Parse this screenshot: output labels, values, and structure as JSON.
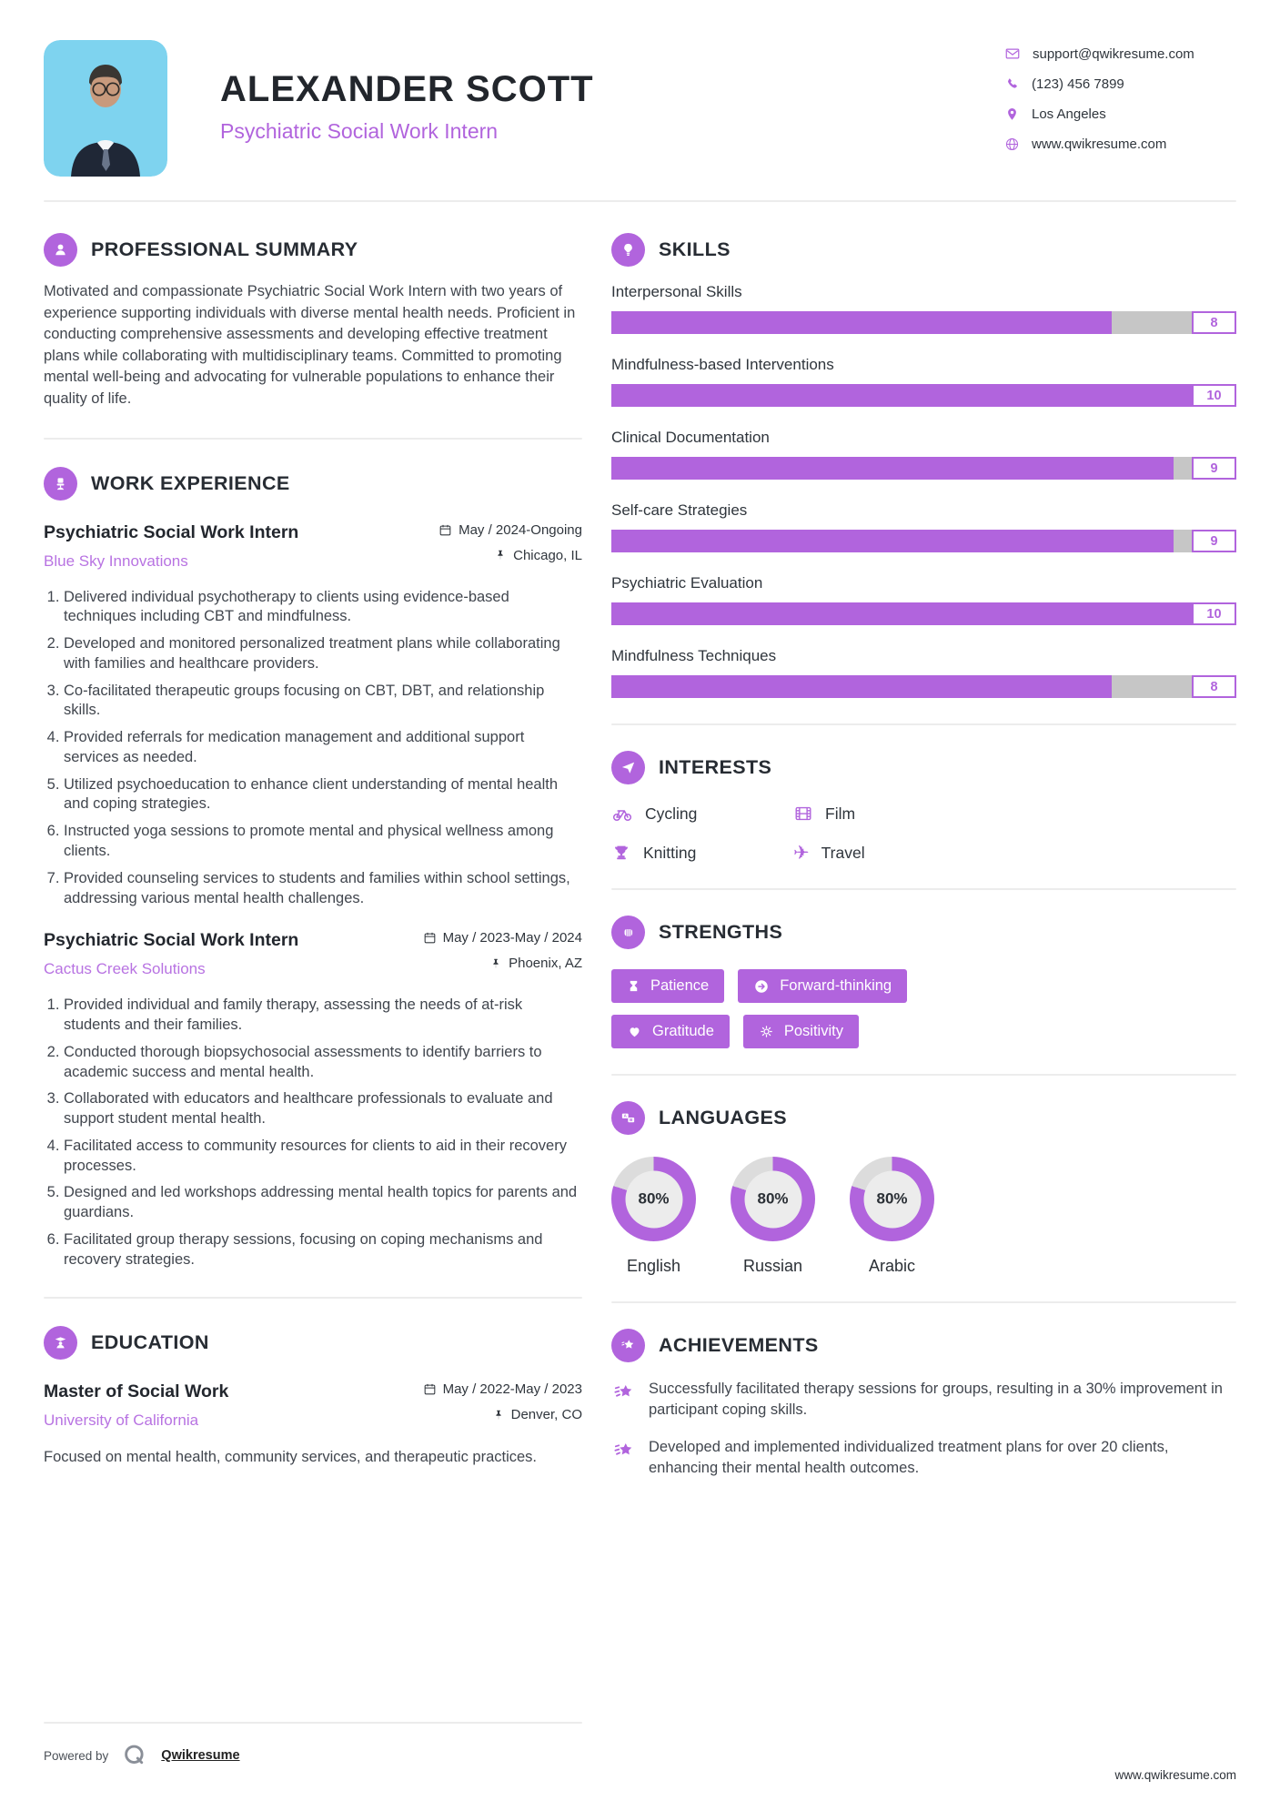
{
  "colors": {
    "accent": "#b164dd",
    "bar_track": "#c6c6c6",
    "donut_track": "#dcdcdc",
    "photo_bg": "#7ed3ef"
  },
  "header": {
    "name": "ALEXANDER SCOTT",
    "title": "Psychiatric Social Work Intern",
    "contact": {
      "email": {
        "icon": "envelope-icon",
        "text": "support@qwikresume.com"
      },
      "phone": {
        "icon": "phone-icon",
        "text": "(123) 456 7899"
      },
      "location": {
        "icon": "location-pin-icon",
        "text": "Los Angeles"
      },
      "website": {
        "icon": "globe-icon",
        "text": "www.qwikresume.com"
      }
    }
  },
  "summary": {
    "heading": "PROFESSIONAL SUMMARY",
    "text": "Motivated and compassionate Psychiatric Social Work Intern with two years of experience supporting individuals with diverse mental health needs. Proficient in conducting comprehensive assessments and developing effective treatment plans while collaborating with multidisciplinary teams. Committed to promoting mental well-being and advocating for vulnerable populations to enhance their quality of life."
  },
  "experience": {
    "heading": "WORK EXPERIENCE",
    "jobs": [
      {
        "title": "Psychiatric Social Work Intern",
        "company": "Blue Sky Innovations",
        "dates": "May / 2024-Ongoing",
        "location": "Chicago, IL",
        "bullets": [
          "Delivered individual psychotherapy to clients using evidence-based techniques including CBT and mindfulness.",
          "Developed and monitored personalized treatment plans while collaborating with families and healthcare providers.",
          "Co-facilitated therapeutic groups focusing on CBT, DBT, and relationship skills.",
          "Provided referrals for medication management and additional support services as needed.",
          "Utilized psychoeducation to enhance client understanding of mental health and coping strategies.",
          "Instructed yoga sessions to promote mental and physical wellness among clients.",
          "Provided counseling services to students and families within school settings, addressing various mental health challenges."
        ]
      },
      {
        "title": "Psychiatric Social Work Intern",
        "company": "Cactus Creek Solutions",
        "dates": "May / 2023-May / 2024",
        "location": "Phoenix, AZ",
        "bullets": [
          "Provided individual and family therapy, assessing the needs of at-risk students and their families.",
          "Conducted thorough biopsychosocial assessments to identify barriers to academic success and mental health.",
          "Collaborated with educators and healthcare professionals to evaluate and support student mental health.",
          "Facilitated access to community resources for clients to aid in their recovery processes.",
          "Designed and led workshops addressing mental health topics for parents and guardians.",
          "Facilitated group therapy sessions, focusing on coping mechanisms and recovery strategies."
        ]
      }
    ]
  },
  "education": {
    "heading": "EDUCATION",
    "degree": "Master of Social Work",
    "school": "University of California",
    "dates": "May / 2022-May / 2023",
    "location": "Denver, CO",
    "description": "Focused on mental health, community services, and therapeutic practices."
  },
  "skills": {
    "heading": "SKILLS",
    "items": [
      {
        "name": "Interpersonal Skills",
        "score": "8",
        "percent": 80
      },
      {
        "name": "Mindfulness-based Interventions",
        "score": "10",
        "percent": 100
      },
      {
        "name": "Clinical Documentation",
        "score": "9",
        "percent": 90
      },
      {
        "name": "Self-care Strategies",
        "score": "9",
        "percent": 90
      },
      {
        "name": "Psychiatric Evaluation",
        "score": "10",
        "percent": 100
      },
      {
        "name": "Mindfulness Techniques",
        "score": "8",
        "percent": 80
      }
    ]
  },
  "interests": {
    "heading": "INTERESTS",
    "items": [
      {
        "icon": "bicycle-icon",
        "label": "Cycling"
      },
      {
        "icon": "film-icon",
        "label": "Film"
      },
      {
        "icon": "trophy-icon",
        "label": "Knitting"
      },
      {
        "icon": "airplane-icon",
        "label": "Travel"
      }
    ]
  },
  "strengths": {
    "heading": "STRENGTHS",
    "items": [
      {
        "icon": "hourglass-icon",
        "label": "Patience"
      },
      {
        "icon": "arrow-right-icon",
        "label": "Forward-thinking"
      },
      {
        "icon": "heart-icon",
        "label": "Gratitude"
      },
      {
        "icon": "sun-icon",
        "label": "Positivity"
      }
    ]
  },
  "languages": {
    "heading": "LANGUAGES",
    "items": [
      {
        "name": "English",
        "percent": 80,
        "label": "80%"
      },
      {
        "name": "Russian",
        "percent": 80,
        "label": "80%"
      },
      {
        "name": "Arabic",
        "percent": 80,
        "label": "80%"
      }
    ]
  },
  "achievements": {
    "heading": "ACHIEVEMENTS",
    "items": [
      "Successfully facilitated therapy sessions for groups, resulting in a 30% improvement in participant coping skills.",
      "Developed and implemented individualized treatment plans for over 20 clients, enhancing their mental health outcomes."
    ]
  },
  "footer": {
    "powered_by": "Powered by",
    "brand": "Qwikresume",
    "website": "www.qwikresume.com"
  }
}
